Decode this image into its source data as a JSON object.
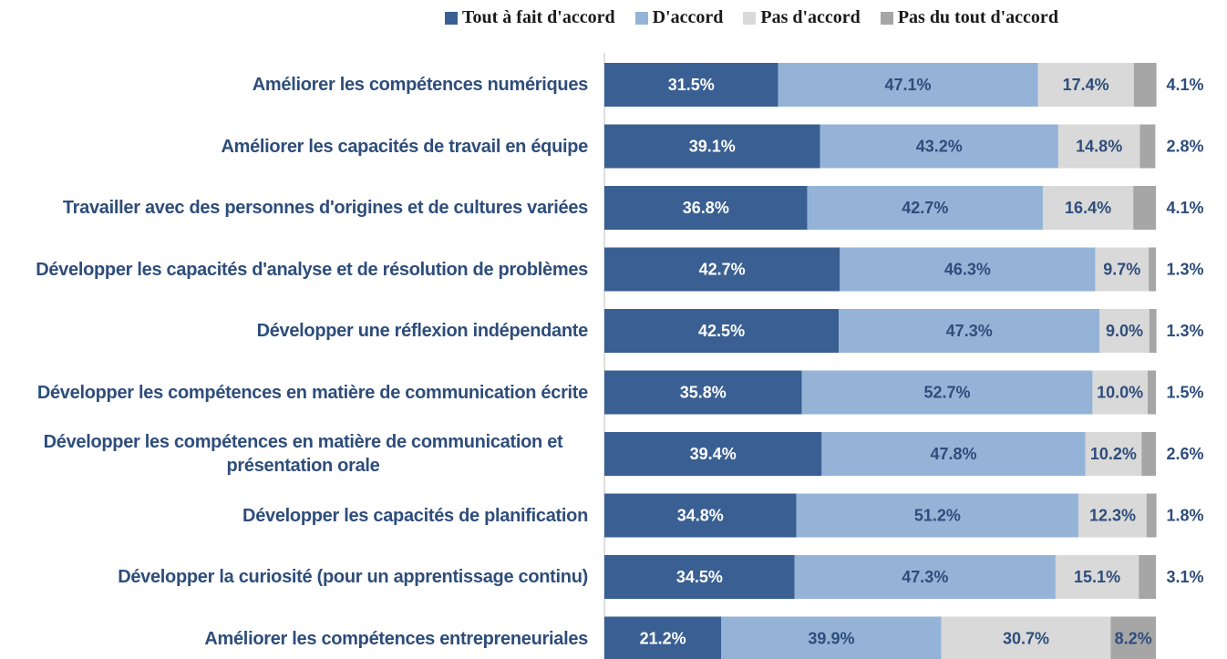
{
  "chart_data": {
    "type": "stacked_barh",
    "categories": [
      "Améliorer les compétences numériques",
      "Améliorer les capacités de travail en équipe",
      "Travailler avec des personnes d'origines et de cultures variées",
      "Développer les capacités d'analyse et de résolution de problèmes",
      "Développer une réflexion indépendante",
      "Développer les compétences en matière de communication écrite",
      "Développer les compétences en matière de communication et présentation orale",
      "Développer les capacités de planification",
      "Développer la curiosité (pour un apprentissage continu)",
      "Améliorer les compétences entrepreneuriales"
    ],
    "series": [
      {
        "name": "Tout à fait d'accord",
        "color": "#3a5f92",
        "values": [
          31.5,
          39.1,
          36.8,
          42.7,
          42.5,
          35.8,
          39.4,
          34.8,
          34.5,
          21.2
        ],
        "value_labels": [
          "31.5%",
          "39.1%",
          "36.8%",
          "42.7%",
          "42.5%",
          "35.8%",
          "39.4%",
          "34.8%",
          "34.5%",
          "21.2%"
        ]
      },
      {
        "name": "D'accord",
        "color": "#95b3d7",
        "values": [
          47.1,
          43.2,
          42.7,
          46.3,
          47.3,
          52.7,
          47.8,
          51.2,
          47.3,
          39.9
        ],
        "value_labels": [
          "47.1%",
          "43.2%",
          "42.7%",
          "46.3%",
          "47.3%",
          "52.7%",
          "47.8%",
          "51.2%",
          "47.3%",
          "39.9%"
        ]
      },
      {
        "name": "Pas d'accord",
        "color": "#d9d9d9",
        "values": [
          17.4,
          14.8,
          16.4,
          9.7,
          9.0,
          10.0,
          10.2,
          12.3,
          15.1,
          30.7
        ],
        "value_labels": [
          "17.4%",
          "14.8%",
          "16.4%",
          "9.7%",
          "9.0%",
          "10.0%",
          "10.2%",
          "12.3%",
          "15.1%",
          "30.7%"
        ]
      },
      {
        "name": "Pas du tout d'accord",
        "color": "#a6a6a6",
        "values": [
          4.1,
          2.8,
          4.1,
          1.3,
          1.3,
          1.5,
          2.6,
          1.8,
          3.1,
          8.2
        ],
        "value_labels": [
          "4.1%",
          "2.8%",
          "4.1%",
          "1.3%",
          "1.3%",
          "1.5%",
          "2.6%",
          "1.8%",
          "3.1%",
          "8.2%"
        ]
      }
    ]
  }
}
